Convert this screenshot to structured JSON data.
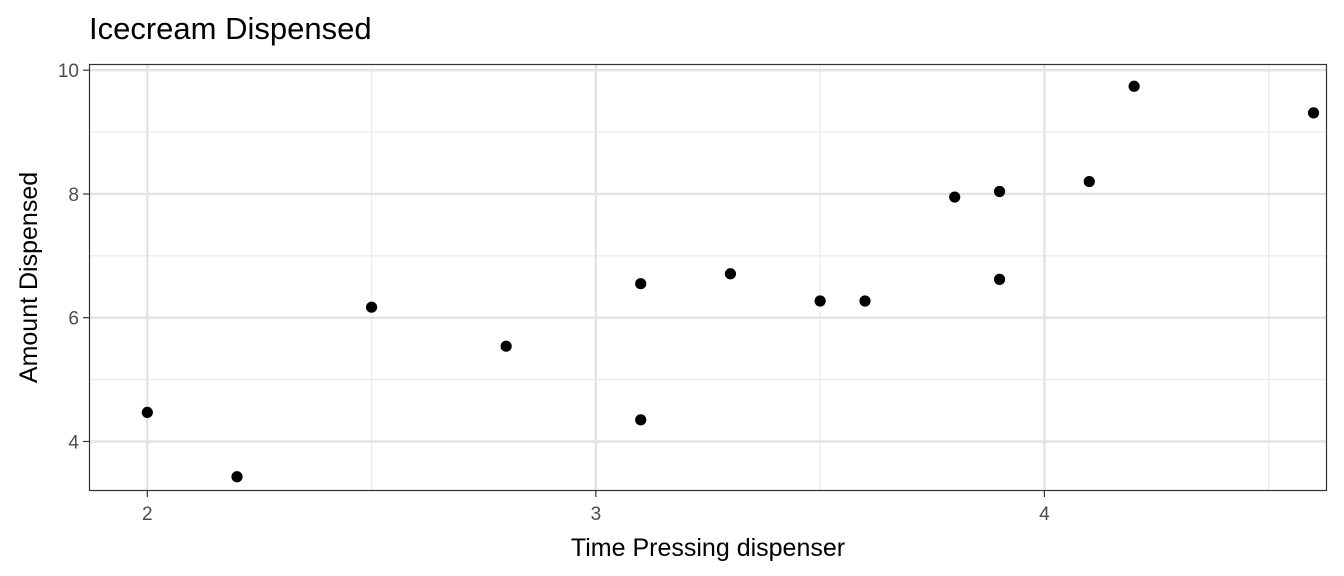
{
  "chart_data": {
    "type": "scatter",
    "title": "Icecream Dispensed",
    "xlabel": "Time Pressing dispenser",
    "ylabel": "Amount Dispensed",
    "xlim": [
      1.87,
      4.63
    ],
    "ylim": [
      3.2,
      10.1
    ],
    "x_ticks": [
      2,
      3,
      4
    ],
    "x_minor": [
      2.5,
      3.5,
      4.5
    ],
    "y_ticks": [
      4,
      6,
      8,
      10
    ],
    "y_minor": [
      5,
      7,
      9
    ],
    "grid": true,
    "legend": "none",
    "point_color": "#000000",
    "series": [
      {
        "x": [
          2.0,
          2.2,
          2.5,
          2.8,
          3.1,
          3.1,
          3.3,
          3.5,
          3.6,
          3.8,
          3.9,
          3.9,
          4.1,
          4.2,
          4.6
        ],
        "y": [
          4.47,
          3.43,
          6.17,
          5.54,
          6.55,
          4.35,
          6.71,
          6.27,
          6.27,
          7.95,
          8.04,
          6.62,
          8.2,
          9.74,
          9.31
        ]
      }
    ]
  }
}
